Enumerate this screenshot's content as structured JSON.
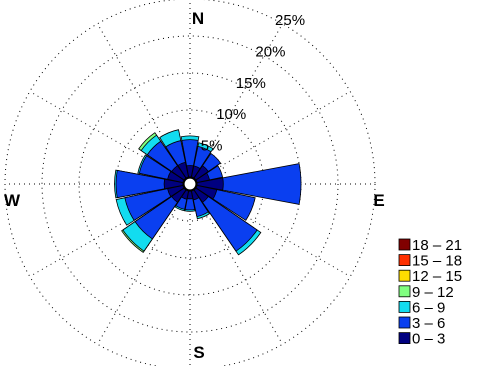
{
  "chart_data": {
    "type": "wind-rose",
    "directions_deg": [
      0,
      22.5,
      45,
      67.5,
      90,
      112.5,
      135,
      157.5,
      180,
      202.5,
      225,
      247.5,
      270,
      292.5,
      315,
      337.5
    ],
    "compass_labels": [
      "N",
      "E",
      "S",
      "W"
    ],
    "radial_ticks": [
      5,
      10,
      15,
      20,
      25
    ],
    "radial_tick_labels": [
      "5%",
      "10%",
      "15%",
      "20%",
      "25%"
    ],
    "radial_max": 25,
    "bins": [
      {
        "label": "0 – 3",
        "color": "#000080"
      },
      {
        "label": "3 – 6",
        "color": "#0a3ff0"
      },
      {
        "label": "6 – 9",
        "color": "#12dcf0"
      },
      {
        "label": "9 – 12",
        "color": "#80ff80"
      },
      {
        "label": "12 – 15",
        "color": "#ffdd00"
      },
      {
        "label": "15 – 18",
        "color": "#ff3000"
      },
      {
        "label": "18 – 21",
        "color": "#800000"
      }
    ],
    "series_cumulative_percent": [
      [
        2.5,
        6.0,
        6.5,
        6.5,
        6.5,
        6.5,
        6.5
      ],
      [
        2.5,
        5.2,
        5.7,
        5.7,
        5.7,
        5.7,
        5.7
      ],
      [
        3.0,
        5.0,
        5.0,
        5.0,
        5.0,
        5.0,
        5.0
      ],
      [
        2.7,
        4.5,
        4.5,
        4.5,
        4.5,
        4.5,
        4.5
      ],
      [
        4.5,
        15.0,
        15.0,
        15.0,
        15.0,
        15.0,
        15.0
      ],
      [
        3.7,
        9.0,
        9.0,
        9.0,
        9.0,
        9.0,
        9.0
      ],
      [
        3.0,
        11.0,
        11.6,
        11.6,
        11.6,
        11.6,
        11.6
      ],
      [
        2.2,
        4.5,
        4.8,
        4.8,
        4.8,
        4.8,
        4.8
      ],
      [
        2.0,
        3.5,
        3.7,
        3.7,
        3.7,
        3.7,
        3.7
      ],
      [
        2.1,
        3.5,
        3.7,
        3.7,
        3.7,
        3.7,
        3.7
      ],
      [
        3.0,
        9.0,
        11.0,
        11.2,
        11.2,
        11.2,
        11.2
      ],
      [
        3.1,
        9.0,
        10.2,
        10.2,
        10.2,
        10.2,
        10.2
      ],
      [
        3.5,
        10.0,
        10.2,
        10.2,
        10.2,
        10.2,
        10.2
      ],
      [
        3.1,
        7.0,
        7.2,
        7.2,
        7.2,
        7.2,
        7.2
      ],
      [
        3.0,
        7.0,
        8.0,
        8.4,
        8.4,
        8.4,
        8.4
      ],
      [
        3.0,
        6.0,
        7.5,
        7.5,
        7.5,
        7.5,
        7.5
      ]
    ],
    "grid": true,
    "legend_position": "bottom-right"
  }
}
